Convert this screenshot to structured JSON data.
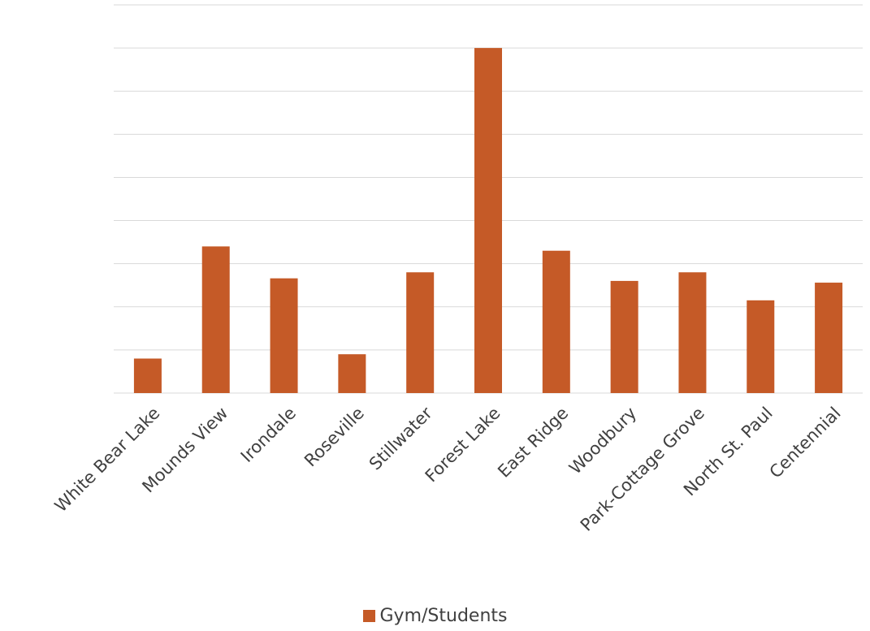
{
  "chart_data": {
    "type": "bar",
    "categories": [
      "White Bear Lake",
      "Mounds View",
      "Irondale",
      "Roseville",
      "Stillwater",
      "Forest Lake",
      "East Ridge",
      "Woodbury",
      "Park-Cottage Grove",
      "North St. Paul",
      "Centennial"
    ],
    "series": [
      {
        "name": "Gym/Students",
        "values": [
          0.8,
          3.4,
          2.66,
          0.9,
          2.8,
          8.0,
          3.3,
          2.6,
          2.8,
          2.15,
          2.56
        ],
        "color": "#c55a27"
      }
    ],
    "ylim": [
      0,
      9
    ],
    "grid": true,
    "y_tick_labels_shown": false,
    "legend_position": "bottom",
    "title": "",
    "xlabel": "",
    "ylabel": ""
  }
}
